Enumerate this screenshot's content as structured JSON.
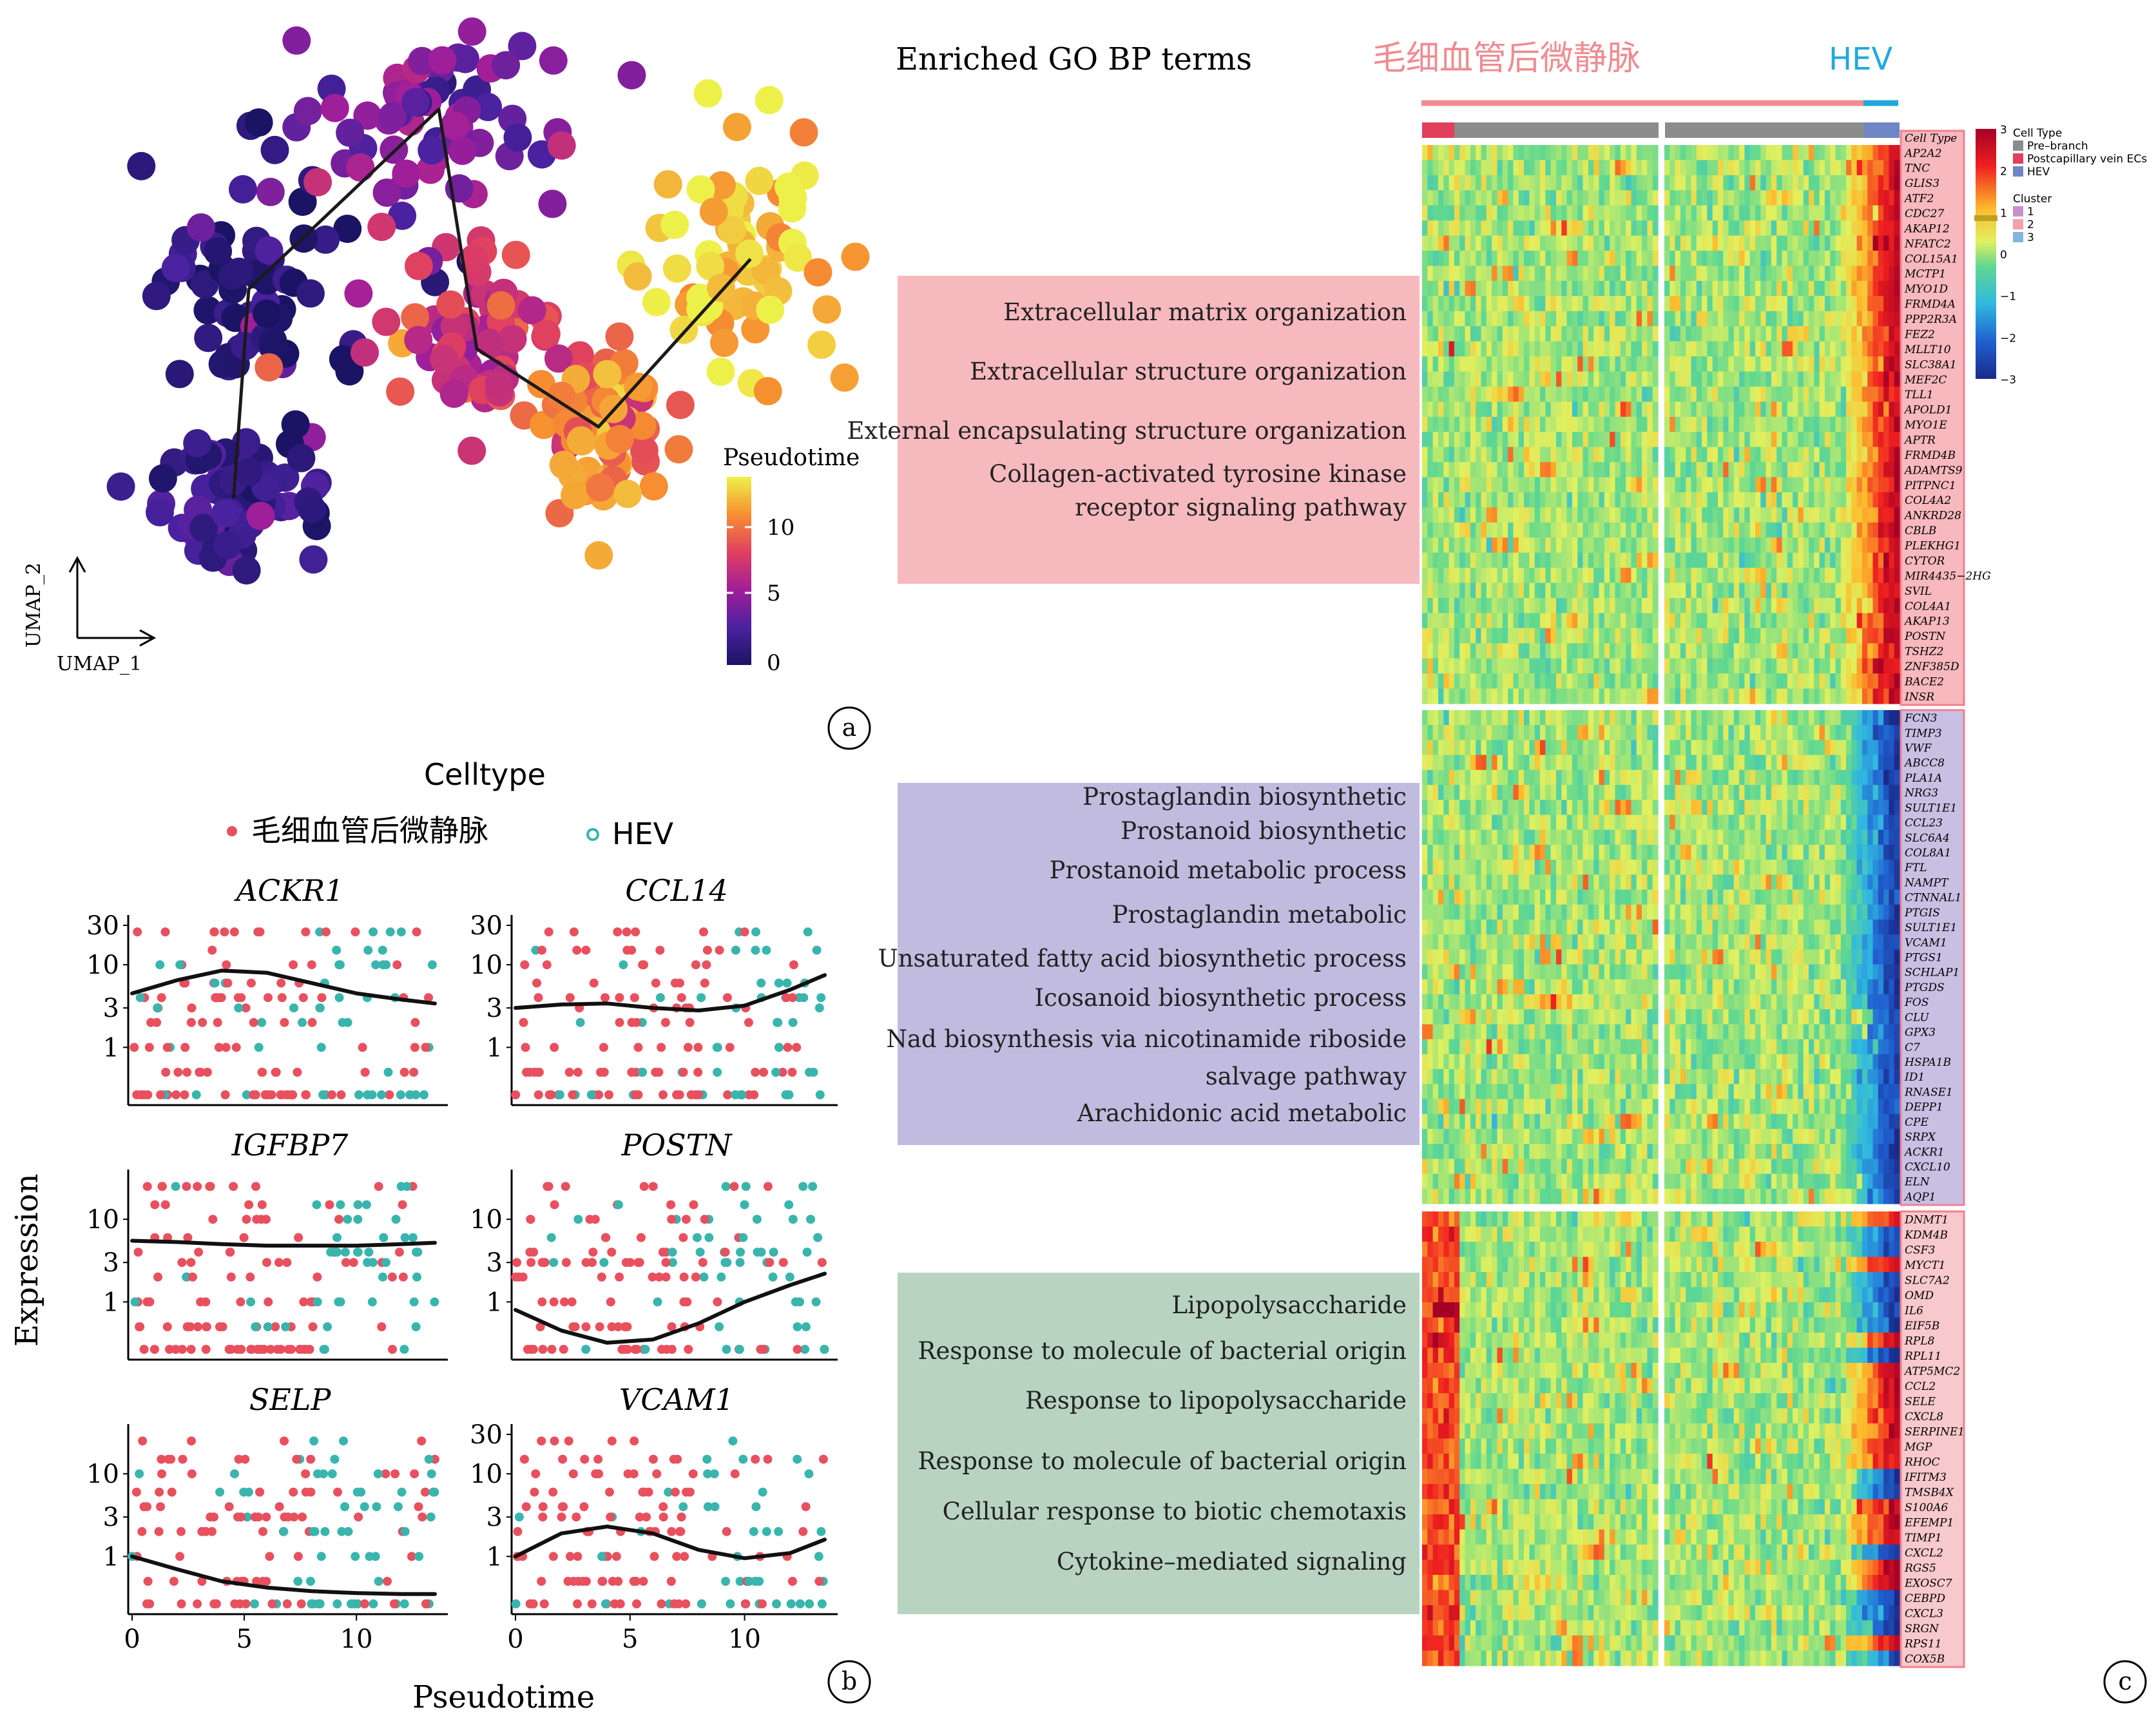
{
  "panel_labels": {
    "a": "a",
    "b": "b",
    "c": "c"
  },
  "panel_a": {
    "axis_x": "UMAP_1",
    "axis_y": "UMAP_2",
    "legend_title": "Pseudotime",
    "legend_ticks": [
      "0",
      "5",
      "10"
    ]
  },
  "panel_b": {
    "legend_title": "Celltype",
    "legend_items": [
      {
        "label": "毛细血管后微静脉",
        "color": "#e8505e"
      },
      {
        "label": "HEV",
        "color": "#39b5ad"
      }
    ],
    "ylabel": "Expression",
    "xlabel": "Pseudotime",
    "x_ticks": [
      "0",
      "5",
      "10"
    ]
  },
  "panel_c": {
    "title": "Enriched GO BP terms",
    "header_left": "毛细血管后微静脉",
    "header_right": "HEV",
    "legend": {
      "scale_ticks": [
        "3",
        "2",
        "1",
        "0",
        "−1",
        "−2",
        "−3"
      ],
      "cell_type_title": "Cell Type",
      "cell_types": [
        {
          "label": "Pre–branch",
          "color": "#8c8c8c"
        },
        {
          "label": "Postcapillary vein ECs",
          "color": "#e0405a"
        },
        {
          "label": "HEV",
          "color": "#6f86c6"
        }
      ],
      "cluster_title": "Cluster",
      "clusters": [
        {
          "label": "1",
          "color": "#c890c8"
        },
        {
          "label": "2",
          "color": "#f4a0a8"
        },
        {
          "label": "3",
          "color": "#80b6e0"
        }
      ]
    },
    "gene_header": "Cell Type",
    "blocks": [
      {
        "terms": [
          "Extracellular matrix organization",
          "Extracellular structure organization",
          "External encapsulating structure organization",
          "Collagen-activated tyrosine kinase",
          "receptor signaling pathway"
        ],
        "genes": [
          "AP2A2",
          "TNC",
          "GLIS3",
          "ATF2",
          "CDC27",
          "AKAP12",
          "NFATC2",
          "COL15A1",
          "MCTP1",
          "MYO1D",
          "FRMD4A",
          "PPP2R3A",
          "FEZ2",
          "MLLT10",
          "SLC38A1",
          "MEF2C",
          "TLL1",
          "APOLD1",
          "MYO1E",
          "APTR",
          "FRMD4B",
          "ADAMTS9",
          "PITPNC1",
          "COL4A2",
          "ANKRD28",
          "CBLB",
          "PLEKHG1",
          "CYTOR",
          "MIR4435−2HG",
          "SVIL",
          "COL4A1",
          "AKAP13",
          "POSTN",
          "TSHZ2",
          "ZNF385D",
          "BACE2",
          "INSR"
        ]
      },
      {
        "terms": [
          "Prostaglandin biosynthetic",
          "Prostanoid biosynthetic",
          "Prostanoid metabolic process",
          "Prostaglandin metabolic",
          "Unsaturated fatty acid biosynthetic process",
          "Icosanoid biosynthetic process",
          "Nad biosynthesis via nicotinamide riboside",
          "salvage pathway",
          "Arachidonic acid metabolic"
        ],
        "genes": [
          "FCN3",
          "TIMP3",
          "VWF",
          "ABCC8",
          "PLA1A",
          "NRG3",
          "SULT1E1",
          "CCL23",
          "SLC6A4",
          "COL8A1",
          "FTL",
          "NAMPT",
          "CTNNAL1",
          "PTGIS",
          "SULT1E1",
          "VCAM1",
          "PTGS1",
          "SCHLAP1",
          "PTGDS",
          "FOS",
          "CLU",
          "GPX3",
          "C7",
          "HSPA1B",
          "ID1",
          "RNASE1",
          "DEPP1",
          "CPE",
          "SRPX",
          "ACKR1",
          "CXCL10",
          "ELN",
          "AQP1"
        ]
      },
      {
        "terms": [
          "Lipopolysaccharide",
          "Response to molecule of bacterial origin",
          "Response to lipopolysaccharide",
          "Response to molecule of bacterial origin",
          "Cellular response to biotic chemotaxis",
          "Cytokine–mediated signaling"
        ],
        "genes": [
          "DNMT1",
          "KDM4B",
          "CSF3",
          "MYCT1",
          "SLC7A2",
          "OMD",
          "IL6",
          "EIF5B",
          "RPL8",
          "RPL11",
          "ATP5MC2",
          "CCL2",
          "SELE",
          "CXCL8",
          "SERPINE1",
          "MGP",
          "RHOC",
          "IFITM3",
          "TMSB4X",
          "S100A6",
          "EFEMP1",
          "TIMP1",
          "CXCL2",
          "RGS5",
          "EXOSC7",
          "CEBPD",
          "CXCL3",
          "SRGN",
          "RPS11",
          "COX5B"
        ]
      }
    ]
  },
  "chart_data": [
    {
      "type": "scatter",
      "panel": "a",
      "xlabel": "UMAP_1",
      "ylabel": "UMAP_2",
      "color_scale": {
        "title": "Pseudotime",
        "range": [
          0,
          13
        ],
        "ticks": [
          0,
          5,
          10
        ]
      },
      "clusters": [
        {
          "region": "left",
          "x": 0.2,
          "y": 0.55,
          "pseudotime": 1
        },
        {
          "region": "lower-left",
          "x": 0.18,
          "y": 0.2,
          "pseudotime": 2
        },
        {
          "region": "top-middle",
          "x": 0.45,
          "y": 0.85,
          "pseudotime": 4
        },
        {
          "region": "center",
          "x": 0.5,
          "y": 0.45,
          "pseudotime": 7
        },
        {
          "region": "center-right",
          "x": 0.66,
          "y": 0.32,
          "pseudotime": 10
        },
        {
          "region": "right",
          "x": 0.86,
          "y": 0.6,
          "pseudotime": 12
        }
      ]
    },
    {
      "type": "scatter",
      "panel": "b",
      "xlabel": "Pseudotime",
      "ylabel": "Expression",
      "xlim": [
        0,
        13.5
      ],
      "series": [
        {
          "name": "毛细血管后微静脉",
          "color": "#e8505e"
        },
        {
          "name": "HEV",
          "color": "#39b5ad"
        }
      ],
      "facets": [
        {
          "gene": "ACKR1",
          "y_ticks": [
            "30",
            "10",
            "3",
            "1"
          ],
          "trend_x": [
            0,
            2,
            4,
            6,
            8,
            10,
            12,
            13.5
          ],
          "trend_y": [
            4.5,
            6.5,
            8.5,
            8.0,
            6.0,
            4.5,
            3.8,
            3.4
          ]
        },
        {
          "gene": "CCL14",
          "y_ticks": [
            "30",
            "10",
            "3",
            "1"
          ],
          "trend_x": [
            0,
            2,
            4,
            6,
            8,
            10,
            12,
            13.5
          ],
          "trend_y": [
            3.0,
            3.3,
            3.4,
            3.0,
            2.8,
            3.2,
            5.0,
            7.5
          ]
        },
        {
          "gene": "IGFBP7",
          "y_ticks": [
            "10",
            "3",
            "1"
          ],
          "trend_x": [
            0,
            2,
            4,
            6,
            8,
            10,
            12,
            13.5
          ],
          "trend_y": [
            5.5,
            5.3,
            5.0,
            4.8,
            4.8,
            4.8,
            5.0,
            5.2
          ]
        },
        {
          "gene": "POSTN",
          "y_ticks": [
            "10",
            "3",
            "1"
          ],
          "trend_x": [
            0,
            2,
            4,
            6,
            8,
            10,
            12,
            13.5
          ],
          "trend_y": [
            0.8,
            0.45,
            0.32,
            0.35,
            0.55,
            1.0,
            1.6,
            2.2
          ]
        },
        {
          "gene": "SELP",
          "y_ticks": [
            "10",
            "3",
            "1"
          ],
          "trend_x": [
            0,
            2,
            4,
            6,
            8,
            10,
            12,
            13.5
          ],
          "trend_y": [
            1.0,
            0.7,
            0.5,
            0.42,
            0.38,
            0.36,
            0.35,
            0.35
          ]
        },
        {
          "gene": "VCAM1",
          "y_ticks": [
            "30",
            "10",
            "3",
            "1"
          ],
          "trend_x": [
            0,
            2,
            4,
            6,
            8,
            10,
            12,
            13.5
          ],
          "trend_y": [
            1.0,
            1.9,
            2.3,
            1.9,
            1.2,
            0.95,
            1.1,
            1.6
          ]
        }
      ]
    },
    {
      "type": "heatmap",
      "panel": "c",
      "value_range": [
        -3,
        3
      ],
      "columns": "pseudotime, two branches",
      "row_blocks": [
        37,
        33,
        30
      ]
    }
  ]
}
